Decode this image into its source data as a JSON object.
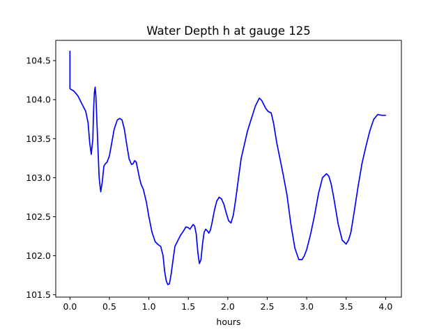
{
  "chart_data": {
    "type": "line",
    "title": "Water Depth h at gauge 125",
    "xlabel": "hours",
    "ylabel": "",
    "xlim": [
      -0.18,
      4.2
    ],
    "ylim": [
      101.47,
      104.76
    ],
    "xticks": [
      0.0,
      0.5,
      1.0,
      1.5,
      2.0,
      2.5,
      3.0,
      3.5,
      4.0
    ],
    "xtick_labels": [
      "0.0",
      "0.5",
      "1.0",
      "1.5",
      "2.0",
      "2.5",
      "3.0",
      "3.5",
      "4.0"
    ],
    "yticks": [
      101.5,
      102.0,
      102.5,
      103.0,
      103.5,
      104.0,
      104.5
    ],
    "ytick_labels": [
      "101.5",
      "102.0",
      "102.5",
      "103.0",
      "103.5",
      "104.0",
      "104.5"
    ],
    "grid": false,
    "series": [
      {
        "color": "#0000ff",
        "x": [
          0.0,
          0.0,
          0.0,
          0.05,
          0.1,
          0.15,
          0.2,
          0.23,
          0.25,
          0.27,
          0.29,
          0.3,
          0.31,
          0.32,
          0.33,
          0.35,
          0.37,
          0.39,
          0.41,
          0.43,
          0.45,
          0.47,
          0.5,
          0.53,
          0.56,
          0.6,
          0.63,
          0.66,
          0.69,
          0.72,
          0.75,
          0.78,
          0.8,
          0.82,
          0.84,
          0.86,
          0.88,
          0.9,
          0.93,
          0.97,
          1.0,
          1.04,
          1.08,
          1.12,
          1.15,
          1.18,
          1.2,
          1.22,
          1.24,
          1.26,
          1.28,
          1.3,
          1.33,
          1.36,
          1.4,
          1.44,
          1.47,
          1.5,
          1.52,
          1.54,
          1.56,
          1.58,
          1.6,
          1.62,
          1.64,
          1.66,
          1.68,
          1.7,
          1.72,
          1.74,
          1.76,
          1.78,
          1.8,
          1.83,
          1.86,
          1.89,
          1.92,
          1.95,
          1.98,
          2.01,
          2.04,
          2.07,
          2.1,
          2.13,
          2.17,
          2.2,
          2.25,
          2.3,
          2.35,
          2.4,
          2.43,
          2.45,
          2.48,
          2.51,
          2.55,
          2.58,
          2.62,
          2.66,
          2.7,
          2.75,
          2.8,
          2.85,
          2.9,
          2.94,
          2.97,
          3.0,
          3.05,
          3.1,
          3.15,
          3.2,
          3.25,
          3.28,
          3.31,
          3.34,
          3.37,
          3.4,
          3.45,
          3.5,
          3.53,
          3.56,
          3.6,
          3.65,
          3.7,
          3.75,
          3.8,
          3.85,
          3.9,
          3.95,
          4.0
        ],
        "values": [
          104.62,
          104.38,
          104.14,
          104.11,
          104.05,
          103.95,
          103.85,
          103.7,
          103.45,
          103.3,
          103.5,
          103.88,
          104.1,
          104.16,
          104.02,
          103.5,
          103.0,
          102.82,
          102.95,
          103.15,
          103.18,
          103.2,
          103.28,
          103.45,
          103.62,
          103.74,
          103.76,
          103.74,
          103.62,
          103.42,
          103.24,
          103.17,
          103.18,
          103.22,
          103.2,
          103.1,
          103.0,
          102.92,
          102.85,
          102.68,
          102.5,
          102.3,
          102.18,
          102.14,
          102.12,
          102.0,
          101.8,
          101.68,
          101.63,
          101.64,
          101.75,
          101.9,
          102.12,
          102.18,
          102.26,
          102.32,
          102.37,
          102.36,
          102.34,
          102.37,
          102.4,
          102.38,
          102.28,
          102.05,
          101.9,
          101.95,
          102.15,
          102.3,
          102.34,
          102.32,
          102.29,
          102.33,
          102.42,
          102.58,
          102.7,
          102.75,
          102.73,
          102.66,
          102.55,
          102.45,
          102.42,
          102.52,
          102.72,
          102.95,
          103.25,
          103.38,
          103.6,
          103.76,
          103.92,
          104.02,
          103.99,
          103.95,
          103.89,
          103.85,
          103.83,
          103.7,
          103.45,
          103.25,
          103.05,
          102.78,
          102.4,
          102.1,
          101.95,
          101.95,
          102.0,
          102.08,
          102.28,
          102.52,
          102.8,
          103.0,
          103.05,
          103.02,
          102.92,
          102.76,
          102.58,
          102.4,
          102.2,
          102.15,
          102.2,
          102.3,
          102.55,
          102.88,
          103.18,
          103.4,
          103.6,
          103.75,
          103.81,
          103.8,
          103.8
        ]
      }
    ]
  },
  "axes_style": {
    "spine_color": "#000000",
    "background": "#ffffff"
  }
}
